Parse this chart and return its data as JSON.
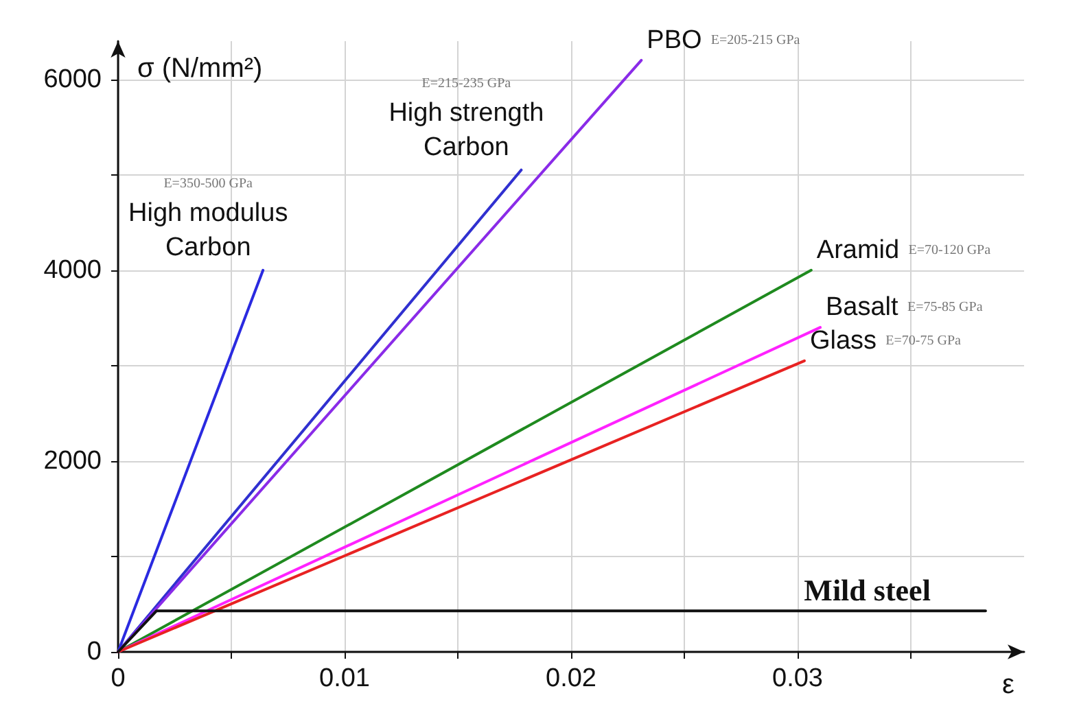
{
  "chart_data": {
    "type": "line",
    "xlabel": "ε",
    "ylabel": "σ (N/mm²)",
    "xlim": [
      0,
      0.04
    ],
    "ylim": [
      0,
      6400
    ],
    "xticks": [
      0,
      {
        "value": 0.005,
        "label": null
      },
      0.01,
      {
        "value": 0.015,
        "label": null
      },
      0.02,
      {
        "value": 0.025,
        "label": null
      },
      0.03,
      {
        "value": 0.035,
        "label": null
      }
    ],
    "yticks": [
      0,
      {
        "value": 1000,
        "label": null
      },
      2000,
      {
        "value": 3000,
        "label": null
      },
      4000,
      {
        "value": 5000,
        "label": null
      },
      6000
    ],
    "grid": true,
    "legend": false,
    "marker": "none",
    "line_style": "solid",
    "series": [
      {
        "name": "High modulus Carbon",
        "color": "#2a2ae0",
        "x": [
          0,
          0.0064
        ],
        "values": [
          0,
          4000
        ]
      },
      {
        "name": "High strength Carbon",
        "color": "#3030d0",
        "x": [
          0,
          0.0178
        ],
        "values": [
          0,
          5050
        ]
      },
      {
        "name": "PBO",
        "color": "#8a2be8",
        "x": [
          0,
          0.0231
        ],
        "values": [
          0,
          6200
        ]
      },
      {
        "name": "Aramid",
        "color": "#1f8a1f",
        "x": [
          0,
          0.0306
        ],
        "values": [
          0,
          4000
        ]
      },
      {
        "name": "Basalt",
        "color": "#ff22ff",
        "x": [
          0,
          0.031
        ],
        "values": [
          0,
          3400
        ]
      },
      {
        "name": "Glass",
        "color": "#e82222",
        "x": [
          0,
          0.0303
        ],
        "values": [
          0,
          3050
        ]
      },
      {
        "name": "Mild steel",
        "color": "#111111",
        "x": [
          0,
          0.0017,
          0.0383
        ],
        "values": [
          0,
          430,
          430
        ]
      }
    ],
    "annotations": [
      "E=350-500 GPa",
      "E=215-235 GPa",
      "E=205-215 GPa",
      "E=70-120 GPa",
      "E=75-85 GPa",
      "E=70-75 GPa"
    ]
  }
}
